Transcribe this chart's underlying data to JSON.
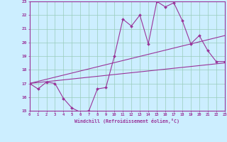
{
  "xlabel": "Windchill (Refroidissement éolien,°C)",
  "background_color": "#cceeff",
  "line_color": "#993399",
  "grid_color": "#99ccbb",
  "xmin": 0,
  "xmax": 23,
  "ymin": 15,
  "ymax": 23,
  "hours": [
    0,
    1,
    2,
    3,
    4,
    5,
    6,
    7,
    8,
    9,
    10,
    11,
    12,
    13,
    14,
    15,
    16,
    17,
    18,
    19,
    20,
    21,
    22,
    23
  ],
  "temp_main": [
    17.0,
    16.6,
    17.1,
    17.0,
    15.9,
    15.2,
    14.9,
    15.0,
    16.6,
    16.7,
    19.0,
    21.7,
    21.2,
    22.0,
    19.9,
    23.0,
    22.6,
    22.9,
    21.6,
    19.9,
    20.5,
    19.4,
    18.6,
    18.6
  ],
  "line_upper_start": 17.0,
  "line_upper_end": 20.5,
  "line_lower_start": 17.0,
  "line_lower_end": 18.5
}
